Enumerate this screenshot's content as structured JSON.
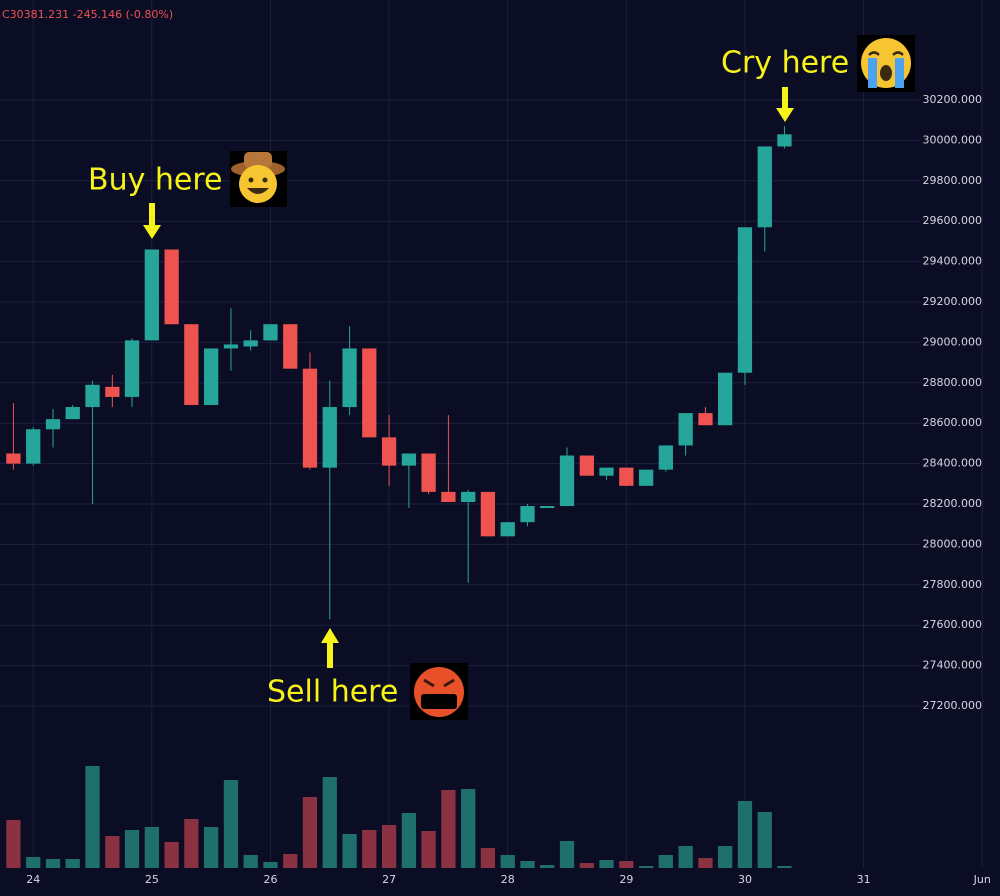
{
  "chart_data": {
    "type": "candlestick",
    "header": "C30381.231 -245.146 (-0.80%)",
    "x": [
      23.833,
      24.0,
      24.167,
      24.333,
      24.5,
      24.667,
      24.833,
      25.0,
      25.167,
      25.333,
      25.5,
      25.667,
      25.833,
      26.0,
      26.167,
      26.333,
      26.5,
      26.667,
      26.833,
      27.0,
      27.167,
      27.333,
      27.5,
      27.667,
      27.833,
      28.0,
      28.167,
      28.333,
      28.5,
      28.667,
      28.833,
      29.0,
      29.167,
      29.333,
      29.5,
      29.667,
      29.833,
      30.0,
      30.167,
      30.333
    ],
    "open": [
      28450,
      28400,
      28570,
      28620,
      28680,
      28780,
      28730,
      29010,
      29460,
      29090,
      28690,
      28970,
      28980,
      29010,
      29090,
      28870,
      28380,
      28680,
      28970,
      28530,
      28390,
      28450,
      28260,
      28210,
      28260,
      28040,
      28110,
      28180,
      28190,
      28440,
      28340,
      28380,
      28290,
      28370,
      28490,
      28650,
      28590,
      28850,
      29570,
      29970
    ],
    "high": [
      28700,
      28580,
      28670,
      28690,
      28810,
      28840,
      29020,
      29460,
      29460,
      29090,
      28970,
      29170,
      29060,
      29090,
      29090,
      28950,
      28810,
      29080,
      28970,
      28640,
      28450,
      28450,
      28640,
      28270,
      28260,
      28110,
      28200,
      28190,
      28480,
      28440,
      28380,
      28380,
      28370,
      28490,
      28650,
      28680,
      28850,
      29570,
      29970,
      30070
    ],
    "low": [
      28370,
      28390,
      28480,
      28620,
      28200,
      28680,
      28680,
      29010,
      29090,
      28690,
      28690,
      28860,
      28960,
      29010,
      28870,
      28370,
      27630,
      28640,
      28530,
      28290,
      28180,
      28250,
      28210,
      27810,
      28040,
      28040,
      28090,
      28180,
      28190,
      28340,
      28320,
      28290,
      28290,
      28360,
      28440,
      28590,
      28590,
      28790,
      29450,
      29960
    ],
    "close": [
      28400,
      28570,
      28620,
      28680,
      28790,
      28730,
      29010,
      29460,
      29090,
      28690,
      28970,
      28990,
      29010,
      29090,
      28870,
      28380,
      28680,
      28970,
      28530,
      28390,
      28450,
      28260,
      28210,
      28260,
      28040,
      28110,
      28190,
      28190,
      28440,
      28340,
      28380,
      28290,
      28370,
      28490,
      28650,
      28590,
      28850,
      29570,
      29970,
      30030
    ],
    "volume": [
      48,
      11,
      9,
      9,
      102,
      32,
      38,
      41,
      26,
      49,
      41,
      88,
      13,
      6,
      14,
      71,
      91,
      34,
      38,
      43,
      55,
      37,
      78,
      79,
      20,
      13,
      7,
      3,
      27,
      5,
      8,
      7,
      2,
      13,
      22,
      10,
      22,
      67,
      56,
      2
    ],
    "up_color": "#26a69a",
    "down_color": "#ef5350",
    "up_volume_color": "#1f6f6c",
    "down_volume_color": "#8a3142",
    "xlim": [
      23.72,
      32.15
    ],
    "xticks": [
      24,
      25,
      26,
      27,
      28,
      29,
      30,
      31,
      {
        "value": 32,
        "label": "Jun"
      }
    ],
    "ylim": [
      27007,
      30695
    ],
    "yticks": [
      {
        "value": 27200,
        "label": "27200.000"
      },
      {
        "value": 27400,
        "label": "27400.000"
      },
      {
        "value": 27600,
        "label": "27600.000"
      },
      {
        "value": 27800,
        "label": "27800.000"
      },
      {
        "value": 28000,
        "label": "28000.000"
      },
      {
        "value": 28200,
        "label": "28200.000"
      },
      {
        "value": 28400,
        "label": "28400.000"
      },
      {
        "value": 28600,
        "label": "28600.000"
      },
      {
        "value": 28800,
        "label": "28800.000"
      },
      {
        "value": 29000,
        "label": "29000.000"
      },
      {
        "value": 29200,
        "label": "29200.000"
      },
      {
        "value": 29400,
        "label": "29400.000"
      },
      {
        "value": 29600,
        "label": "29600.000"
      },
      {
        "value": 29800,
        "label": "29800.000"
      },
      {
        "value": 30000,
        "label": "30000.000"
      },
      {
        "value": 30200,
        "label": "30200.000"
      }
    ],
    "vlim": [
      0,
      120
    ],
    "grid": true,
    "annotations": [
      "Buy here",
      "Sell here",
      "Cry here"
    ]
  }
}
